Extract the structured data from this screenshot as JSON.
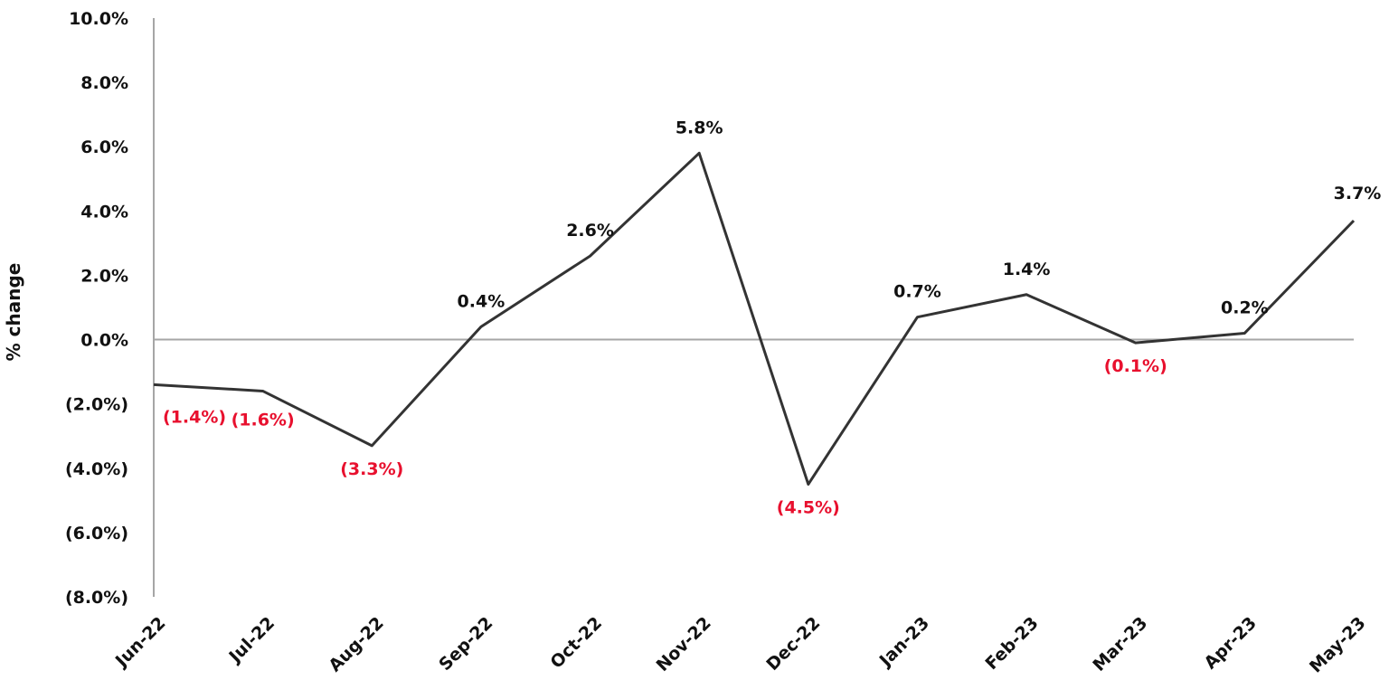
{
  "chart_data": {
    "type": "line",
    "title": "",
    "xlabel": "",
    "ylabel": "% change",
    "ylim": [
      -8,
      10
    ],
    "yticks": [
      10,
      8,
      6,
      4,
      2,
      0,
      -2,
      -4,
      -6,
      -8
    ],
    "ytick_labels": [
      "10.0%",
      "8.0%",
      "6.0%",
      "4.0%",
      "2.0%",
      "0.0%",
      "(2.0%)",
      "(4.0%)",
      "(6.0%)",
      "(8.0%)"
    ],
    "categories": [
      "Jun-22",
      "Jul-22",
      "Aug-22",
      "Sep-22",
      "Oct-22",
      "Nov-22",
      "Dec-22",
      "Jan-23",
      "Feb-23",
      "Mar-23",
      "Apr-23",
      "May-23"
    ],
    "series": [
      {
        "name": "% change",
        "values": [
          -1.4,
          -1.6,
          -3.3,
          0.4,
          2.6,
          5.8,
          -4.5,
          0.7,
          1.4,
          -0.1,
          0.2,
          3.7
        ],
        "data_labels": [
          "(1.4%)",
          "(1.6%)",
          "(3.3%)",
          "0.4%",
          "2.6%",
          "5.8%",
          "(4.5%)",
          "0.7%",
          "1.4%",
          "(0.1%)",
          "0.2%",
          "3.7%"
        ]
      }
    ],
    "grid": false,
    "legend": "none",
    "colors": {
      "line": "#333333",
      "axis": "#a6a6a6",
      "positive_label": "#111111",
      "negative_label": "#e8102e"
    }
  }
}
